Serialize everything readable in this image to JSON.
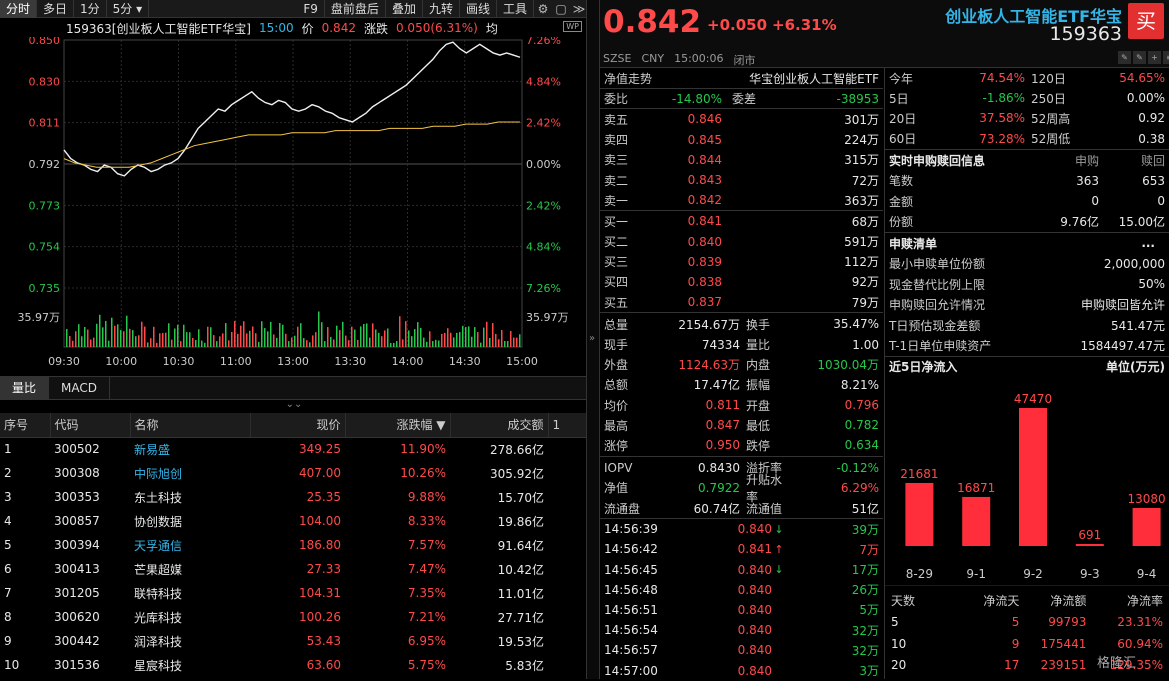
{
  "toolbar": {
    "items": [
      "分时",
      "多日",
      "1分",
      "5分",
      "F9",
      "盘前盘后",
      "叠加",
      "九转",
      "画线",
      "工具"
    ]
  },
  "chartinfo": {
    "name": "159363[创业板人工智能ETF华宝]",
    "time": "15:00",
    "price_label": "价",
    "price": "0.842",
    "change_label": "涨跌",
    "change": "0.050(6.31%)",
    "avg_label": "均"
  },
  "chart_data": {
    "type": "line",
    "y_left_ticks": [
      "0.850",
      "0.830",
      "0.811",
      "0.792",
      "0.773",
      "0.754",
      "0.735"
    ],
    "y_right_ticks": [
      "7.26%",
      "4.84%",
      "2.42%",
      "0.00%",
      "2.42%",
      "4.84%",
      "7.26%"
    ],
    "volume_label": "35.97万",
    "x_ticks": [
      "09:30",
      "10:00",
      "10:30",
      "11:00",
      "13:00",
      "13:30",
      "14:00",
      "14:30",
      "15:00"
    ],
    "ylim": [
      0.735,
      0.85
    ],
    "price_series": [
      0.799,
      0.795,
      0.793,
      0.792,
      0.79,
      0.789,
      0.792,
      0.791,
      0.788,
      0.787,
      0.79,
      0.792,
      0.791,
      0.789,
      0.79,
      0.792,
      0.793,
      0.795,
      0.799,
      0.804,
      0.809,
      0.812,
      0.815,
      0.818,
      0.817,
      0.82,
      0.822,
      0.824,
      0.826,
      0.823,
      0.821,
      0.82,
      0.822,
      0.821,
      0.818,
      0.817,
      0.818,
      0.82,
      0.819,
      0.817,
      0.816,
      0.814,
      0.813,
      0.812,
      0.814,
      0.816,
      0.819,
      0.821,
      0.823,
      0.825,
      0.827,
      0.829,
      0.832,
      0.835,
      0.838,
      0.841,
      0.845,
      0.848,
      0.849,
      0.846,
      0.844,
      0.846,
      0.848,
      0.846,
      0.844,
      0.843,
      0.844,
      0.843,
      0.842
    ],
    "avg_series": [
      0.795,
      0.793,
      0.792,
      0.791,
      0.791,
      0.791,
      0.791,
      0.792,
      0.793,
      0.795,
      0.797,
      0.799,
      0.801,
      0.802,
      0.803,
      0.804,
      0.805,
      0.806,
      0.806,
      0.806,
      0.806,
      0.807,
      0.807,
      0.807,
      0.807,
      0.808,
      0.808,
      0.808,
      0.808,
      0.808,
      0.809,
      0.809,
      0.809,
      0.809,
      0.81,
      0.81,
      0.81,
      0.811,
      0.811,
      0.811,
      0.812,
      0.812,
      0.812
    ]
  },
  "subtabs": [
    "量比",
    "MACD"
  ],
  "table": {
    "headers": [
      "序号",
      "代码",
      "名称",
      "现价",
      "涨跌幅 ▼",
      "成交额",
      "1"
    ],
    "rows": [
      {
        "idx": "1",
        "code": "300502",
        "name": "新易盛",
        "price": "349.25",
        "pct": "11.90%",
        "amt": "278.66亿",
        "cyan": true
      },
      {
        "idx": "2",
        "code": "300308",
        "name": "中际旭创",
        "price": "407.00",
        "pct": "10.26%",
        "amt": "305.92亿",
        "cyan": true
      },
      {
        "idx": "3",
        "code": "300353",
        "name": "东土科技",
        "price": "25.35",
        "pct": "9.88%",
        "amt": "15.70亿",
        "cyan": false
      },
      {
        "idx": "4",
        "code": "300857",
        "name": "协创数据",
        "price": "104.00",
        "pct": "8.33%",
        "amt": "19.86亿",
        "cyan": false
      },
      {
        "idx": "5",
        "code": "300394",
        "name": "天孚通信",
        "price": "186.80",
        "pct": "7.57%",
        "amt": "91.64亿",
        "cyan": true
      },
      {
        "idx": "6",
        "code": "300413",
        "name": "芒果超媒",
        "price": "27.33",
        "pct": "7.47%",
        "amt": "10.42亿",
        "cyan": false
      },
      {
        "idx": "7",
        "code": "301205",
        "name": "联特科技",
        "price": "104.31",
        "pct": "7.35%",
        "amt": "11.01亿",
        "cyan": false
      },
      {
        "idx": "8",
        "code": "300620",
        "name": "光库科技",
        "price": "100.26",
        "pct": "7.21%",
        "amt": "27.71亿",
        "cyan": false
      },
      {
        "idx": "9",
        "code": "300442",
        "name": "润泽科技",
        "price": "53.43",
        "pct": "6.95%",
        "amt": "19.53亿",
        "cyan": false
      },
      {
        "idx": "10",
        "code": "301536",
        "name": "星宸科技",
        "price": "63.60",
        "pct": "5.75%",
        "amt": "5.83亿",
        "cyan": false
      }
    ]
  },
  "quote": {
    "price": "0.842",
    "change": "+0.050",
    "pct": "+6.31%",
    "name": "创业板人工智能ETF华宝",
    "code": "159363",
    "buy": "买",
    "market": "SZSE",
    "currency": "CNY",
    "time": "15:00:06",
    "status": "闭市"
  },
  "book": {
    "nav_label": "净值走势",
    "nav_name": "华宝创业板人工智能ETF",
    "wb_label": "委比",
    "wb": "-14.80%",
    "wc_label": "委差",
    "wc": "-38953",
    "asks": [
      {
        "l": "卖五",
        "p": "0.846",
        "v": "301万"
      },
      {
        "l": "卖四",
        "p": "0.845",
        "v": "224万"
      },
      {
        "l": "卖三",
        "p": "0.844",
        "v": "315万"
      },
      {
        "l": "卖二",
        "p": "0.843",
        "v": "72万"
      },
      {
        "l": "卖一",
        "p": "0.842",
        "v": "363万"
      }
    ],
    "bids": [
      {
        "l": "买一",
        "p": "0.841",
        "v": "68万"
      },
      {
        "l": "买二",
        "p": "0.840",
        "v": "591万"
      },
      {
        "l": "买三",
        "p": "0.839",
        "v": "112万"
      },
      {
        "l": "买四",
        "p": "0.838",
        "v": "92万"
      },
      {
        "l": "买五",
        "p": "0.837",
        "v": "79万"
      }
    ]
  },
  "stats": [
    {
      "a": "总量",
      "v1": "2154.67万",
      "c1": "wht",
      "b": "换手",
      "v2": "35.47%",
      "c2": "wht"
    },
    {
      "a": "现手",
      "v1": "74334",
      "c1": "wht",
      "b": "量比",
      "v2": "1.00",
      "c2": "wht"
    },
    {
      "a": "外盘",
      "v1": "1124.63万",
      "c1": "red",
      "b": "内盘",
      "v2": "1030.04万",
      "c2": "grn"
    },
    {
      "a": "总额",
      "v1": "17.47亿",
      "c1": "wht",
      "b": "振幅",
      "v2": "8.21%",
      "c2": "wht"
    },
    {
      "a": "均价",
      "v1": "0.811",
      "c1": "red",
      "b": "开盘",
      "v2": "0.796",
      "c2": "red"
    },
    {
      "a": "最高",
      "v1": "0.847",
      "c1": "red",
      "b": "最低",
      "v2": "0.782",
      "c2": "grn"
    },
    {
      "a": "涨停",
      "v1": "0.950",
      "c1": "red",
      "b": "跌停",
      "v2": "0.634",
      "c2": "grn"
    }
  ],
  "stats2": [
    {
      "a": "IOPV",
      "v1": "0.8430",
      "c1": "wht",
      "b": "溢折率",
      "v2": "-0.12%",
      "c2": "grn"
    },
    {
      "a": "净值",
      "v1": "0.7922",
      "c1": "grn",
      "b": "升贴水率",
      "v2": "6.29%",
      "c2": "red"
    },
    {
      "a": "流通盘",
      "v1": "60.74亿",
      "c1": "wht",
      "b": "流通值",
      "v2": "51亿",
      "c2": "wht"
    }
  ],
  "ticks": [
    {
      "t": "14:56:39",
      "p": "0.840",
      "arr": "↓",
      "ac": "grn",
      "v": "39万",
      "vc": "grn"
    },
    {
      "t": "14:56:42",
      "p": "0.841",
      "arr": "↑",
      "ac": "red",
      "v": "7万",
      "vc": "red"
    },
    {
      "t": "14:56:45",
      "p": "0.840",
      "arr": "↓",
      "ac": "grn",
      "v": "17万",
      "vc": "grn"
    },
    {
      "t": "14:56:48",
      "p": "0.840",
      "arr": "",
      "ac": "",
      "v": "26万",
      "vc": "grn"
    },
    {
      "t": "14:56:51",
      "p": "0.840",
      "arr": "",
      "ac": "",
      "v": "5万",
      "vc": "grn"
    },
    {
      "t": "14:56:54",
      "p": "0.840",
      "arr": "",
      "ac": "",
      "v": "32万",
      "vc": "grn"
    },
    {
      "t": "14:56:57",
      "p": "0.840",
      "arr": "",
      "ac": "",
      "v": "32万",
      "vc": "grn"
    },
    {
      "t": "14:57:00",
      "p": "0.840",
      "arr": "",
      "ac": "",
      "v": "3万",
      "vc": "grn"
    }
  ],
  "perf": [
    {
      "a": "今年",
      "v1": "74.54%",
      "c1": "red",
      "b": "120日",
      "v2": "54.65%",
      "c2": "red"
    },
    {
      "a": "5日",
      "v1": "-1.86%",
      "c1": "grn",
      "b": "250日",
      "v2": "0.00%",
      "c2": "wht"
    },
    {
      "a": "20日",
      "v1": "37.58%",
      "c1": "red",
      "b": "52周高",
      "v2": "0.92",
      "c2": "wht"
    },
    {
      "a": "60日",
      "v1": "73.28%",
      "c1": "red",
      "b": "52周低",
      "v2": "0.38",
      "c2": "wht"
    }
  ],
  "sub": {
    "title": "实时申购赎回信息",
    "h1": "申购",
    "h2": "赎回",
    "rows": [
      {
        "a": "笔数",
        "v1": "363",
        "v2": "653"
      },
      {
        "a": "金额",
        "v1": "0",
        "v2": "0"
      },
      {
        "a": "份额",
        "v1": "9.76亿",
        "v2": "15.00亿"
      }
    ]
  },
  "list": {
    "title": "申赎清单",
    "more": "...",
    "rows": [
      {
        "a": "最小申赎单位份额",
        "v": "2,000,000"
      },
      {
        "a": "现金替代比例上限",
        "v": "50%"
      },
      {
        "a": "申购赎回允许情况",
        "v": "申购赎回皆允许"
      },
      {
        "a": "T日预估现金差额",
        "v": "541.47元"
      },
      {
        "a": "T-1日单位申赎资产",
        "v": "1584497.47元"
      }
    ]
  },
  "flow": {
    "title": "近5日净流入",
    "unit": "单位(万元)",
    "chart_data": {
      "type": "bar",
      "categories": [
        "8-29",
        "9-1",
        "9-2",
        "9-3",
        "9-4"
      ],
      "values": [
        21681,
        16871,
        47470,
        691,
        13080
      ],
      "labels": [
        "21681",
        "16871",
        "47470",
        "691",
        "13080"
      ]
    },
    "headers": [
      "天数",
      "净流天",
      "净流额",
      "净流率"
    ],
    "rows": [
      {
        "d": "5",
        "n": "5",
        "amt": "99793",
        "r": "23.31%"
      },
      {
        "d": "10",
        "n": "9",
        "amt": "175441",
        "r": "60.94%"
      },
      {
        "d": "20",
        "n": "17",
        "amt": "239151",
        "r": "129.35%"
      }
    ]
  },
  "watermark": "格隆汇"
}
